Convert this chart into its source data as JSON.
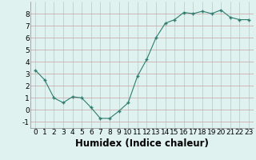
{
  "title": "",
  "xlabel": "Humidex (Indice chaleur)",
  "ylabel": "",
  "x": [
    0,
    1,
    2,
    3,
    4,
    5,
    6,
    7,
    8,
    9,
    10,
    11,
    12,
    13,
    14,
    15,
    16,
    17,
    18,
    19,
    20,
    21,
    22,
    23
  ],
  "y": [
    3.3,
    2.5,
    1.0,
    0.6,
    1.1,
    1.0,
    0.2,
    -0.7,
    -0.7,
    -0.1,
    0.6,
    2.8,
    4.2,
    6.0,
    7.2,
    7.5,
    8.1,
    8.0,
    8.2,
    8.0,
    8.3,
    7.7,
    7.5,
    7.5
  ],
  "line_color": "#2e7d6e",
  "marker": "+",
  "marker_size": 3,
  "bg_color": "#dff2f0",
  "grid_color": "#c8dede",
  "grid_color_major": "#c8b8b8",
  "xlim": [
    -0.5,
    23.5
  ],
  "ylim": [
    -1.5,
    9.0
  ],
  "yticks": [
    -1,
    0,
    1,
    2,
    3,
    4,
    5,
    6,
    7,
    8
  ],
  "xticks": [
    0,
    1,
    2,
    3,
    4,
    5,
    6,
    7,
    8,
    9,
    10,
    11,
    12,
    13,
    14,
    15,
    16,
    17,
    18,
    19,
    20,
    21,
    22,
    23
  ],
  "tick_fontsize": 6.5,
  "label_fontsize": 8.5
}
